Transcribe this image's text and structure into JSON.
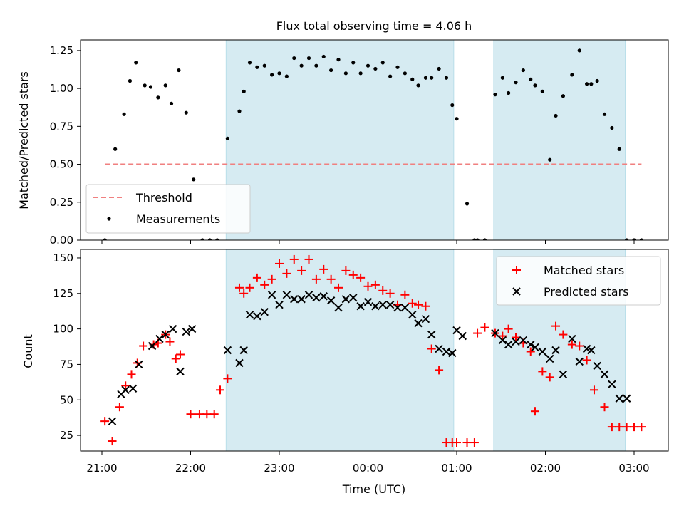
{
  "chart_data": [
    {
      "type": "scatter",
      "title": "Flux total observing time = 4.06 h",
      "xlabel": "",
      "ylabel": "Matched/Predicted stars",
      "ylim": [
        0,
        1.32
      ],
      "yticks": [
        "0.00",
        "0.25",
        "0.50",
        "0.75",
        "1.00",
        "1.25"
      ],
      "grid": false,
      "legend_position": "lower-left",
      "shaded_intervals": [
        [
          "22:24",
          "00:58"
        ],
        [
          "01:25",
          "02:54"
        ]
      ],
      "threshold": {
        "name": "Threshold",
        "value": 0.5,
        "color": "#f08080",
        "style": "dashed"
      },
      "series": [
        {
          "name": "Measurements",
          "marker": "dot",
          "color": "#000000",
          "x": [
            "21:02",
            "21:09",
            "21:15",
            "21:19",
            "21:23",
            "21:29",
            "21:33",
            "21:38",
            "21:43",
            "21:47",
            "21:52",
            "21:57",
            "22:02",
            "22:08",
            "22:13",
            "22:18",
            "22:25",
            "22:33",
            "22:36",
            "22:40",
            "22:45",
            "22:50",
            "22:55",
            "23:00",
            "23:05",
            "23:10",
            "23:15",
            "23:20",
            "23:25",
            "23:30",
            "23:35",
            "23:40",
            "23:45",
            "23:50",
            "23:55",
            "00:00",
            "00:05",
            "00:10",
            "00:15",
            "00:20",
            "00:25",
            "00:30",
            "00:34",
            "00:39",
            "00:43",
            "00:48",
            "00:53",
            "00:57",
            "01:00",
            "01:07",
            "01:12",
            "01:14",
            "01:19",
            "01:26",
            "01:31",
            "01:35",
            "01:40",
            "01:45",
            "01:50",
            "01:53",
            "01:58",
            "02:03",
            "02:07",
            "02:12",
            "02:18",
            "02:23",
            "02:28",
            "02:31",
            "02:35",
            "02:40",
            "02:45",
            "02:50",
            "02:55",
            "03:00",
            "03:05"
          ],
          "y": [
            0.0,
            0.6,
            0.83,
            1.05,
            1.17,
            1.02,
            1.01,
            0.94,
            1.02,
            0.9,
            1.12,
            0.84,
            0.4,
            0.0,
            0.0,
            0.0,
            0.67,
            0.85,
            0.98,
            1.17,
            1.14,
            1.15,
            1.09,
            1.1,
            1.08,
            1.2,
            1.15,
            1.2,
            1.15,
            1.21,
            1.12,
            1.19,
            1.1,
            1.17,
            1.1,
            1.15,
            1.13,
            1.17,
            1.08,
            1.14,
            1.1,
            1.06,
            1.02,
            1.07,
            1.07,
            1.13,
            1.07,
            0.89,
            0.8,
            0.24,
            0.0,
            0.0,
            0.0,
            0.96,
            1.07,
            0.97,
            1.04,
            1.12,
            1.06,
            1.02,
            0.98,
            0.53,
            0.82,
            0.95,
            1.09,
            1.25,
            1.03,
            1.03,
            1.05,
            0.83,
            0.74,
            0.6,
            0.0,
            0.0,
            0.0
          ]
        }
      ]
    },
    {
      "type": "scatter",
      "title": "",
      "xlabel": "Time (UTC)",
      "ylabel": "Count",
      "ylim": [
        14,
        156
      ],
      "yticks": [
        "25",
        "50",
        "75",
        "100",
        "125",
        "150"
      ],
      "xticks": [
        "21:00",
        "22:00",
        "23:00",
        "00:00",
        "01:00",
        "02:00",
        "03:00"
      ],
      "grid": false,
      "legend_position": "top-right",
      "shaded_intervals": [
        [
          "22:24",
          "00:58"
        ],
        [
          "01:25",
          "02:54"
        ]
      ],
      "series": [
        {
          "name": "Matched stars",
          "marker": "plus",
          "color": "#ff0000",
          "x": [
            "21:02",
            "21:07",
            "21:12",
            "21:16",
            "21:20",
            "21:24",
            "21:28",
            "21:35",
            "21:38",
            "21:43",
            "21:46",
            "21:50",
            "21:53",
            "22:00",
            "22:06",
            "22:11",
            "22:16",
            "22:20",
            "22:25",
            "22:33",
            "22:36",
            "22:40",
            "22:45",
            "22:50",
            "22:55",
            "23:00",
            "23:05",
            "23:10",
            "23:15",
            "23:20",
            "23:25",
            "23:30",
            "23:35",
            "23:40",
            "23:45",
            "23:50",
            "23:55",
            "00:00",
            "00:05",
            "00:10",
            "00:15",
            "00:20",
            "00:25",
            "00:30",
            "00:34",
            "00:39",
            "00:43",
            "00:48",
            "00:53",
            "00:57",
            "01:00",
            "01:07",
            "01:12",
            "01:14",
            "01:19",
            "01:26",
            "01:31",
            "01:35",
            "01:40",
            "01:45",
            "01:50",
            "01:53",
            "01:58",
            "02:03",
            "02:07",
            "02:12",
            "02:18",
            "02:23",
            "02:28",
            "02:33",
            "02:40",
            "02:45",
            "02:50",
            "02:55",
            "03:00",
            "03:05"
          ],
          "y": [
            35,
            21,
            45,
            60,
            68,
            76,
            88,
            89,
            90,
            96,
            91,
            79,
            82,
            40,
            40,
            40,
            40,
            57,
            65,
            129,
            125,
            129,
            136,
            131,
            135,
            146,
            139,
            149,
            141,
            149,
            135,
            142,
            135,
            129,
            141,
            138,
            136,
            130,
            131,
            127,
            125,
            117,
            124,
            118,
            117,
            116,
            86,
            71,
            20,
            20,
            20,
            20,
            20,
            97,
            101,
            97,
            95,
            100,
            94,
            90,
            84,
            42,
            70,
            66,
            102,
            96,
            89,
            88,
            78,
            57,
            45,
            31,
            31,
            31,
            31,
            31
          ],
          "note": ""
        },
        {
          "name": "Predicted stars",
          "marker": "x",
          "color": "#000000",
          "x": [
            "21:07",
            "21:13",
            "21:16",
            "21:21",
            "21:25",
            "21:34",
            "21:39",
            "21:43",
            "21:48",
            "21:53",
            "21:57",
            "22:01",
            "22:25",
            "22:33",
            "22:36",
            "22:40",
            "22:45",
            "22:50",
            "22:55",
            "23:00",
            "23:05",
            "23:10",
            "23:15",
            "23:20",
            "23:25",
            "23:30",
            "23:35",
            "23:40",
            "23:45",
            "23:50",
            "23:55",
            "00:00",
            "00:05",
            "00:10",
            "00:15",
            "00:20",
            "00:25",
            "00:30",
            "00:34",
            "00:39",
            "00:43",
            "00:48",
            "00:53",
            "00:57",
            "01:00",
            "01:04",
            "01:26",
            "01:31",
            "01:35",
            "01:40",
            "01:45",
            "01:50",
            "01:53",
            "01:58",
            "02:03",
            "02:07",
            "02:12",
            "02:18",
            "02:23",
            "02:28",
            "02:31",
            "02:35",
            "02:40",
            "02:45",
            "02:50",
            "02:55"
          ],
          "y": [
            35,
            54,
            57,
            58,
            75,
            88,
            93,
            96,
            100,
            70,
            98,
            100,
            85,
            76,
            85,
            110,
            109,
            112,
            124,
            117,
            124,
            121,
            121,
            124,
            122,
            123,
            120,
            115,
            121,
            122,
            116,
            119,
            116,
            117,
            117,
            115,
            115,
            110,
            104,
            107,
            96,
            86,
            84,
            83,
            99,
            95,
            97,
            92,
            89,
            91,
            92,
            89,
            87,
            84,
            79,
            85,
            68,
            93,
            77,
            86,
            85,
            74,
            68,
            61,
            51,
            51
          ],
          "note": ""
        }
      ]
    }
  ]
}
